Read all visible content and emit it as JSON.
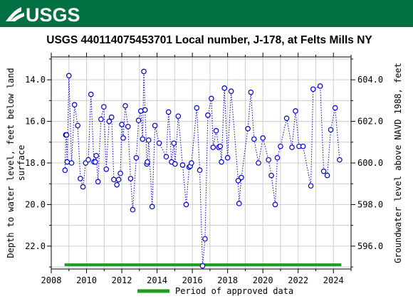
{
  "header": {
    "logo_text": "USGS",
    "bar_color": "#006f41"
  },
  "chart_data": {
    "type": "scatter",
    "title": "USGS 440114075453701 Local number, J-178, at Felts Mills NY",
    "ylabel_left_line1": "Depth to water level, feet below land",
    "ylabel_left_line2": "surface",
    "ylabel_right": "Groundwater level above NAVD 1988, feet",
    "xlim": [
      2008,
      2025
    ],
    "ylim": [
      23.1,
      12.9
    ],
    "x_ticks": [
      2008,
      2010,
      2012,
      2014,
      2016,
      2018,
      2020,
      2022,
      2024
    ],
    "x_tick_labels": [
      "2008",
      "2010",
      "2012",
      "2014",
      "2016",
      "2018",
      "2020",
      "2022",
      "2024"
    ],
    "y_ticks": [
      14.0,
      16.0,
      18.0,
      20.0,
      22.0
    ],
    "y_tick_labels": [
      "14.0",
      "16.0",
      "18.0",
      "20.0",
      "22.0"
    ],
    "y2_ticks": [
      604.0,
      602.0,
      600.0,
      598.0,
      596.0
    ],
    "y2_tick_labels": [
      "604.0",
      "602.0",
      "600.0",
      "598.0",
      "596.0"
    ],
    "y2_offset": 618.0,
    "grid": true,
    "series_color": "#0000cc",
    "approved_color": "#1e9e1e",
    "approved_period": [
      2008.75,
      2024.45
    ],
    "approved_depth": 22.9,
    "legend_label": "Period of approved data",
    "legend_position": "bottom-center",
    "series": [
      {
        "name": "",
        "points": [
          [
            2008.78,
            18.35
          ],
          [
            2008.82,
            16.65
          ],
          [
            2008.86,
            16.65
          ],
          [
            2008.9,
            17.95
          ],
          [
            2009.0,
            13.8
          ],
          [
            2009.15,
            18.0
          ],
          [
            2009.32,
            15.2
          ],
          [
            2009.5,
            16.2
          ],
          [
            2009.65,
            18.75
          ],
          [
            2009.8,
            19.15
          ],
          [
            2009.95,
            18.0
          ],
          [
            2010.1,
            17.85
          ],
          [
            2010.25,
            14.7
          ],
          [
            2010.42,
            17.95
          ],
          [
            2010.5,
            17.95
          ],
          [
            2010.55,
            17.65
          ],
          [
            2010.65,
            18.9
          ],
          [
            2010.82,
            15.9
          ],
          [
            2010.98,
            15.3
          ],
          [
            2011.12,
            18.3
          ],
          [
            2011.28,
            16.0
          ],
          [
            2011.42,
            15.8
          ],
          [
            2011.55,
            18.8
          ],
          [
            2011.72,
            19.05
          ],
          [
            2011.82,
            18.8
          ],
          [
            2011.92,
            18.5
          ],
          [
            2012.0,
            16.15
          ],
          [
            2012.08,
            16.8
          ],
          [
            2012.2,
            15.25
          ],
          [
            2012.35,
            16.25
          ],
          [
            2012.5,
            18.75
          ],
          [
            2012.62,
            20.25
          ],
          [
            2012.82,
            17.75
          ],
          [
            2012.95,
            15.95
          ],
          [
            2013.08,
            15.5
          ],
          [
            2013.18,
            16.85
          ],
          [
            2013.25,
            13.6
          ],
          [
            2013.32,
            15.45
          ],
          [
            2013.42,
            18.05
          ],
          [
            2013.45,
            17.95
          ],
          [
            2013.52,
            16.9
          ],
          [
            2013.72,
            20.1
          ],
          [
            2013.88,
            16.2
          ],
          [
            2014.12,
            17.05
          ],
          [
            2014.52,
            17.7
          ],
          [
            2014.65,
            15.55
          ],
          [
            2014.82,
            17.95
          ],
          [
            2014.95,
            17.05
          ],
          [
            2015.02,
            18.05
          ],
          [
            2015.2,
            15.75
          ],
          [
            2015.45,
            18.1
          ],
          [
            2015.65,
            20.0
          ],
          [
            2015.82,
            18.2
          ],
          [
            2015.88,
            18.15
          ],
          [
            2015.95,
            18.0
          ],
          [
            2016.25,
            15.35
          ],
          [
            2016.42,
            18.35
          ],
          [
            2016.58,
            22.95
          ],
          [
            2016.72,
            21.65
          ],
          [
            2016.88,
            15.7
          ],
          [
            2017.08,
            14.9
          ],
          [
            2017.18,
            17.25
          ],
          [
            2017.35,
            16.45
          ],
          [
            2017.5,
            17.25
          ],
          [
            2017.58,
            17.2
          ],
          [
            2017.65,
            17.95
          ],
          [
            2017.82,
            14.4
          ],
          [
            2018.0,
            17.75
          ],
          [
            2018.2,
            14.55
          ],
          [
            2018.6,
            18.85
          ],
          [
            2018.65,
            19.95
          ],
          [
            2018.78,
            18.7
          ],
          [
            2019.15,
            16.35
          ],
          [
            2019.32,
            14.6
          ],
          [
            2019.5,
            16.85
          ],
          [
            2019.75,
            18.0
          ],
          [
            2020.0,
            16.8
          ],
          [
            2020.32,
            17.85
          ],
          [
            2020.48,
            18.6
          ],
          [
            2020.7,
            20.0
          ],
          [
            2020.82,
            17.75
          ],
          [
            2021.0,
            17.2
          ],
          [
            2021.35,
            15.85
          ],
          [
            2021.65,
            17.25
          ],
          [
            2021.85,
            15.5
          ],
          [
            2022.05,
            17.2
          ],
          [
            2022.28,
            17.2
          ],
          [
            2022.72,
            19.1
          ],
          [
            2022.85,
            14.45
          ],
          [
            2023.25,
            14.3
          ],
          [
            2023.45,
            18.4
          ],
          [
            2023.65,
            18.6
          ],
          [
            2023.85,
            16.4
          ],
          [
            2024.1,
            15.35
          ],
          [
            2024.35,
            17.85
          ]
        ]
      }
    ]
  }
}
